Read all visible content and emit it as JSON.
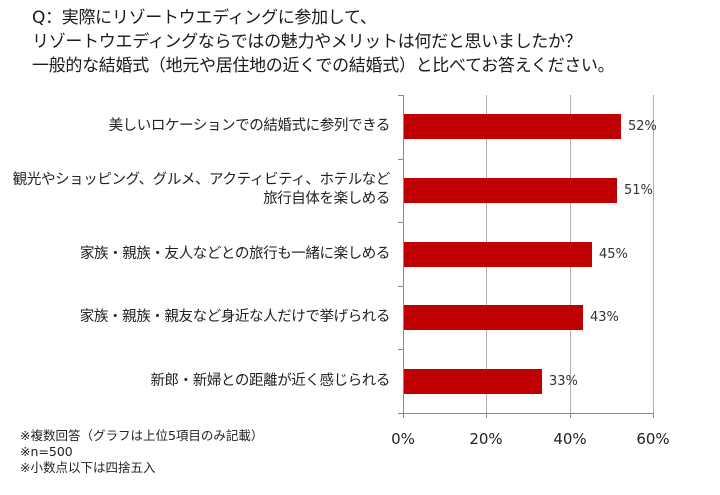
{
  "question": {
    "lines": [
      "Q：実際にリゾートウエディングに参加して、",
      "リゾートウエディングならではの魅力やメリットは何だと思いましたか？",
      "一般的な結婚式（地元や居住地の近くでの結婚式）と比べてお答えください。"
    ]
  },
  "chart_data": {
    "type": "bar",
    "orientation": "horizontal",
    "title": "Q：実際にリゾートウエディングに参加して、リゾートウエディングならではの魅力やメリットは何だと思いましたか？一般的な結婚式（地元や居住地の近くでの結婚式）と比べてお答えください。",
    "categories": [
      "美しいロケーションでの結婚式に参列できる",
      "観光やショッピング、グルメ、アクティビティ、ホテルなど旅行自体を楽しめる",
      "家族・親族・友人などとの旅行も一緒に楽しめる",
      "家族・親族・親友など身近な人だけで挙げられる",
      "新郎・新婦との距離が近く感じられる"
    ],
    "category_lines": [
      [
        "美しいロケーションでの結婚式に参列できる"
      ],
      [
        "観光やショッピング、グルメ、アクティビティ、ホテルなど",
        "旅行自体を楽しめる"
      ],
      [
        "家族・親族・友人などとの旅行も一緒に楽しめる"
      ],
      [
        "家族・親族・親友など身近な人だけで挙げられる"
      ],
      [
        "新郎・新婦との距離が近く感じられる"
      ]
    ],
    "values": [
      52,
      51,
      45,
      43,
      33
    ],
    "value_labels": [
      "52%",
      "51%",
      "45%",
      "43%",
      "33%"
    ],
    "xlabel": "",
    "ylabel": "",
    "xlim": [
      0,
      60
    ],
    "x_ticks": [
      0,
      20,
      40,
      60
    ],
    "x_tick_labels": [
      "0%",
      "20%",
      "40%",
      "60%"
    ],
    "grid": true,
    "legend": "none",
    "bar_color": "#c00000"
  },
  "notes": [
    "※複数回答（グラフは上位5項目のみ記載）",
    "※n=500",
    "※小数点以下は四捨五入"
  ]
}
